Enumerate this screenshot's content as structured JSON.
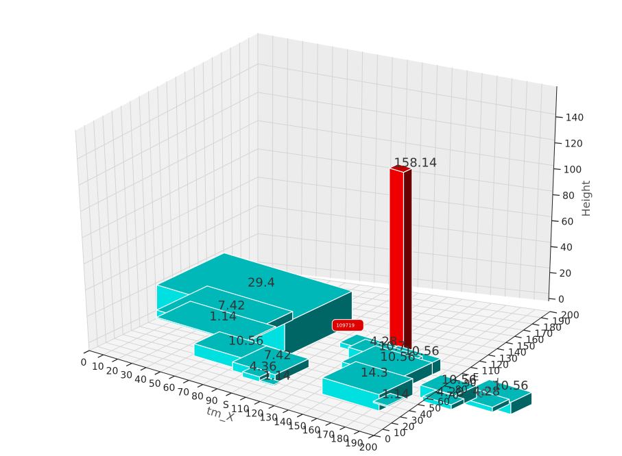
{
  "chart_data": {
    "type": "bar3d",
    "xlabel": "tm_X",
    "ylabel": "tm_Y",
    "zlabel": "Height",
    "xlim": [
      0,
      200
    ],
    "ylim": [
      0,
      200
    ],
    "zlim": [
      0,
      158.14
    ],
    "x_ticks": [
      "0",
      "10",
      "20",
      "30",
      "40",
      "50",
      "60",
      "70",
      "80",
      "90",
      "S",
      "110",
      "120",
      "130",
      "140",
      "150",
      "160",
      "170",
      "180",
      "190",
      "200"
    ],
    "y_ticks": [
      "0",
      "10",
      "20",
      "30",
      "40",
      "50",
      "60",
      "70",
      "80",
      "90",
      "E",
      "110",
      "120",
      "130",
      "140",
      "150",
      "160",
      "170",
      "180",
      "190",
      "200"
    ],
    "z_ticks": [
      "0",
      "20",
      "40",
      "60",
      "80",
      "100",
      "120",
      "140"
    ],
    "colors": {
      "normal": "#00e0e0",
      "highlight": "#ee0000"
    },
    "bars": [
      {
        "x": 0,
        "y": 80,
        "dx": 90,
        "dy": 80,
        "value": 29.4,
        "label": "29.4"
      },
      {
        "x": 0,
        "y": 80,
        "dx": 60,
        "dy": 60,
        "value": 7.42,
        "label": "7.42"
      },
      {
        "x": 0,
        "y": 80,
        "dx": 60,
        "dy": 40,
        "value": 1.14,
        "label": "1.14"
      },
      {
        "x": 50,
        "y": 40,
        "dx": 40,
        "dy": 30,
        "value": 10.56,
        "label": "10.56"
      },
      {
        "x": 80,
        "y": 35,
        "dx": 30,
        "dy": 40,
        "value": 7.42,
        "label": "7.42"
      },
      {
        "x": 90,
        "y": 30,
        "dx": 12,
        "dy": 12,
        "value": 4.36,
        "label": "4.36"
      },
      {
        "x": 102,
        "y": 30,
        "dx": 10,
        "dy": 8,
        "value": 1.14,
        "label": "1.14"
      },
      {
        "x": 105,
        "y": 120,
        "dx": 40,
        "dy": 20,
        "value": 4.28,
        "label": "4.28"
      },
      {
        "x": 128,
        "y": 140,
        "dx": 10,
        "dy": 10,
        "value": 158.14,
        "label": "158.14",
        "highlight": true,
        "callout": "109719"
      },
      {
        "x": 120,
        "y": 105,
        "dx": 40,
        "dy": 20,
        "value": 10.7,
        "label": "10.7"
      },
      {
        "x": 140,
        "y": 110,
        "dx": 30,
        "dy": 20,
        "value": 10.56,
        "label": "10.56"
      },
      {
        "x": 130,
        "y": 80,
        "dx": 40,
        "dy": 40,
        "value": 10.56,
        "label": "10.56"
      },
      {
        "x": 140,
        "y": 40,
        "dx": 40,
        "dy": 40,
        "value": 14.3,
        "label": "14.3"
      },
      {
        "x": 170,
        "y": 50,
        "dx": 10,
        "dy": 20,
        "value": 1.14,
        "label": "1.14"
      },
      {
        "x": 185,
        "y": 80,
        "dx": 25,
        "dy": 25,
        "value": 10.56,
        "label": "10.56"
      },
      {
        "x": 190,
        "y": 75,
        "dx": 20,
        "dy": 15,
        "value": 4.28,
        "label": "4.28"
      },
      {
        "x": 200,
        "y": 90,
        "dx": 30,
        "dy": 20,
        "value": 4.28,
        "label": "4.28"
      },
      {
        "x": 210,
        "y": 95,
        "dx": 30,
        "dy": 25,
        "value": 10.56,
        "label": "10.56"
      }
    ]
  }
}
